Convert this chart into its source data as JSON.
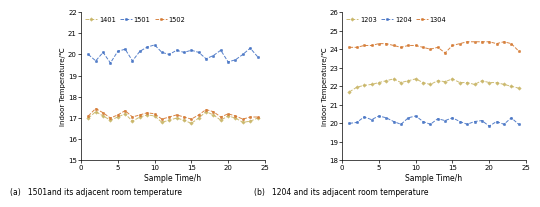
{
  "left": {
    "legend": [
      "1401",
      "1501",
      "1502"
    ],
    "colors": [
      "#c8b464",
      "#4472c4",
      "#d47830"
    ],
    "ylabel": "Indoor Temperature/℃",
    "xlabel": "Sample Time/h",
    "caption": "(a)   1501and its adjacent room temperature",
    "xlim": [
      0,
      25
    ],
    "ylim": [
      15,
      22
    ],
    "yticks": [
      15,
      16,
      17,
      18,
      19,
      20,
      21,
      22
    ],
    "xticks": [
      0,
      5,
      10,
      15,
      20,
      25
    ],
    "series": {
      "1401": {
        "x": [
          1,
          2,
          3,
          4,
          5,
          6,
          7,
          8,
          9,
          10,
          11,
          12,
          13,
          14,
          15,
          16,
          17,
          18,
          19,
          20,
          21,
          22,
          23,
          24
        ],
        "y": [
          17.0,
          17.3,
          17.1,
          16.9,
          17.05,
          17.2,
          16.85,
          17.05,
          17.15,
          17.1,
          16.8,
          16.9,
          17.0,
          16.9,
          16.75,
          17.0,
          17.3,
          17.15,
          16.9,
          17.1,
          17.0,
          16.8,
          16.85,
          17.0
        ]
      },
      "1501": {
        "x": [
          1,
          2,
          3,
          4,
          5,
          6,
          7,
          8,
          9,
          10,
          11,
          12,
          13,
          14,
          15,
          16,
          17,
          18,
          19,
          20,
          21,
          22,
          23,
          24
        ],
        "y": [
          20.0,
          19.7,
          20.1,
          19.6,
          20.15,
          20.25,
          19.7,
          20.15,
          20.35,
          20.45,
          20.1,
          20.0,
          20.2,
          20.1,
          20.2,
          20.1,
          19.8,
          19.95,
          20.2,
          19.65,
          19.75,
          20.0,
          20.3,
          19.9
        ]
      },
      "1502": {
        "x": [
          1,
          2,
          3,
          4,
          5,
          6,
          7,
          8,
          9,
          10,
          11,
          12,
          13,
          14,
          15,
          16,
          17,
          18,
          19,
          20,
          21,
          22,
          23,
          24
        ],
        "y": [
          17.1,
          17.45,
          17.25,
          17.0,
          17.15,
          17.35,
          17.05,
          17.15,
          17.25,
          17.2,
          16.95,
          17.05,
          17.15,
          17.05,
          16.95,
          17.15,
          17.4,
          17.3,
          17.05,
          17.2,
          17.1,
          16.95,
          17.05,
          17.05
        ]
      }
    }
  },
  "right": {
    "legend": [
      "1203",
      "1204",
      "1304"
    ],
    "colors": [
      "#c8b464",
      "#4472c4",
      "#d47830"
    ],
    "ylabel": "Indoor Temperature/℃",
    "xlabel": "Sample Time/h",
    "caption": "(b)   1204 and its adjacent room temperature",
    "xlim": [
      0,
      25
    ],
    "ylim": [
      18,
      26
    ],
    "yticks": [
      18,
      19,
      20,
      21,
      22,
      23,
      24,
      25,
      26
    ],
    "xticks": [
      0,
      5,
      10,
      15,
      20,
      25
    ],
    "series": {
      "1203": {
        "x": [
          1,
          2,
          3,
          4,
          5,
          6,
          7,
          8,
          9,
          10,
          11,
          12,
          13,
          14,
          15,
          16,
          17,
          18,
          19,
          20,
          21,
          22,
          23,
          24
        ],
        "y": [
          21.7,
          21.95,
          22.05,
          22.1,
          22.2,
          22.3,
          22.4,
          22.2,
          22.3,
          22.4,
          22.2,
          22.1,
          22.3,
          22.25,
          22.4,
          22.2,
          22.2,
          22.1,
          22.3,
          22.2,
          22.2,
          22.1,
          22.0,
          21.9
        ]
      },
      "1204": {
        "x": [
          1,
          2,
          3,
          4,
          5,
          6,
          7,
          8,
          9,
          10,
          11,
          12,
          13,
          14,
          15,
          16,
          17,
          18,
          19,
          20,
          21,
          22,
          23,
          24
        ],
        "y": [
          20.0,
          20.05,
          20.35,
          20.2,
          20.4,
          20.3,
          20.1,
          19.95,
          20.3,
          20.4,
          20.1,
          19.95,
          20.25,
          20.15,
          20.3,
          20.1,
          19.95,
          20.1,
          20.15,
          19.85,
          20.1,
          19.95,
          20.3,
          19.95
        ]
      },
      "1304": {
        "x": [
          1,
          2,
          3,
          4,
          5,
          6,
          7,
          8,
          9,
          10,
          11,
          12,
          13,
          14,
          15,
          16,
          17,
          18,
          19,
          20,
          21,
          22,
          23,
          24
        ],
        "y": [
          24.1,
          24.1,
          24.2,
          24.2,
          24.3,
          24.3,
          24.2,
          24.1,
          24.2,
          24.2,
          24.1,
          24.0,
          24.1,
          23.8,
          24.2,
          24.3,
          24.4,
          24.4,
          24.4,
          24.4,
          24.3,
          24.4,
          24.3,
          23.9
        ]
      }
    }
  }
}
